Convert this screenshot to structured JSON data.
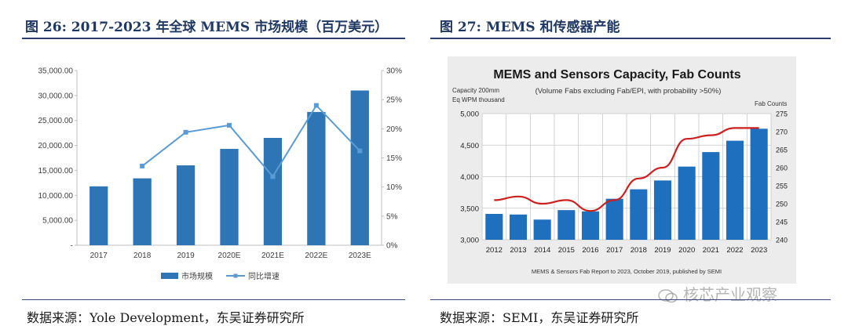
{
  "left": {
    "title": "图 26:  2017-2023 年全球 MEMS 市场规模（百万美元）",
    "source": "数据来源：Yole Development，东吴证券研究所"
  },
  "right": {
    "title": "图 27:     MEMS 和传感器产能",
    "source": "数据来源：SEMI，东吴证券研究所"
  },
  "watermark": "核芯产业观察",
  "colors": {
    "bar": "#2e75b6",
    "line": "#5b9bd5",
    "title": "#1f3864",
    "semi_bar": "#1f6fbf",
    "semi_line": "#cc1f1f"
  },
  "chart_data": [
    {
      "type": "bar",
      "categories": [
        "2017",
        "2018",
        "2019",
        "2020E",
        "2021E",
        "2022E",
        "2023E"
      ],
      "series": [
        {
          "name": "市场规模",
          "type": "bar",
          "axis": "left",
          "values": [
            11800,
            13400,
            16000,
            19300,
            21500,
            26700,
            31000
          ]
        },
        {
          "name": "同比增速",
          "type": "line",
          "axis": "right",
          "values": [
            null,
            13.6,
            19.4,
            20.6,
            11.8,
            24.0,
            16.2
          ]
        }
      ],
      "y_left": {
        "ylim": [
          0,
          35000
        ],
        "ticks": [
          "-",
          "5,000.00",
          "10,000.00",
          "15,000.00",
          "20,000.00",
          "25,000.00",
          "30,000.00",
          "35,000.00"
        ]
      },
      "y_right": {
        "ylim": [
          0,
          30
        ],
        "ticks": [
          "0%",
          "5%",
          "10%",
          "15%",
          "20%",
          "25%",
          "30%"
        ]
      },
      "legend": {
        "position": "bottom",
        "items": [
          "市场规模",
          "同比增速"
        ]
      },
      "grid": false
    },
    {
      "type": "bar",
      "title": "MEMS and Sensors Capacity, Fab Counts",
      "subtitle": "(Volume Fabs excluding Fab/EPI, with probability >50%)",
      "ylabel_left": [
        "Capacity 200mm",
        "Eq WPM thousand"
      ],
      "ylabel_right": "Fab Counts",
      "footnote": "MEMS & Sensors Fab Report to 2023, October 2019, published by SEMI",
      "categories": [
        "2012",
        "2013",
        "2014",
        "2015",
        "2016",
        "2017",
        "2018",
        "2019",
        "2020",
        "2021",
        "2022",
        "2023"
      ],
      "series": [
        {
          "type": "bar",
          "axis": "left",
          "values": [
            3410,
            3400,
            3320,
            3470,
            3450,
            3650,
            3800,
            3940,
            4160,
            4390,
            4570,
            4760
          ]
        },
        {
          "type": "line",
          "axis": "right",
          "values": [
            251,
            252,
            250,
            251,
            248,
            251,
            257,
            260,
            268,
            269,
            271,
            271
          ]
        }
      ],
      "y_left": {
        "ylim": [
          3000,
          5000
        ],
        "ticks": [
          "3,000",
          "3,500",
          "4,000",
          "4,500",
          "5,000"
        ]
      },
      "y_right": {
        "ylim": [
          240,
          275
        ],
        "ticks": [
          "240",
          "245",
          "250",
          "255",
          "260",
          "265",
          "270",
          "275"
        ]
      },
      "grid": true
    }
  ]
}
